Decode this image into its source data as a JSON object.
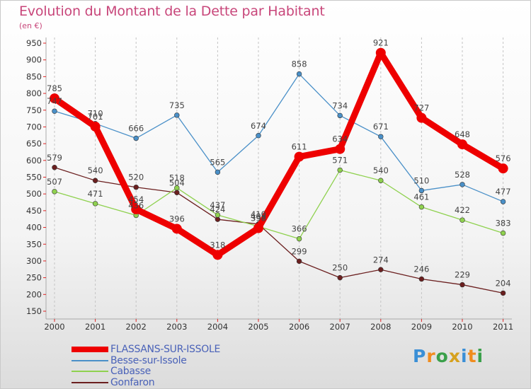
{
  "title": "Evolution du Montant de la Dette par Habitant",
  "subtitle": "(en €)",
  "brand": "Proxiti",
  "chart_data": {
    "type": "line",
    "x": [
      "2000",
      "2001",
      "2002",
      "2003",
      "2004",
      "2005",
      "2006",
      "2007",
      "2008",
      "2009",
      "2010",
      "2011"
    ],
    "yticks": [
      150,
      200,
      250,
      300,
      350,
      400,
      450,
      500,
      550,
      600,
      650,
      700,
      750,
      800,
      850,
      900,
      950
    ],
    "ylim": [
      150,
      950
    ],
    "grid": "vertical dashed",
    "legend_position": "bottom-left",
    "series": [
      {
        "name": "FLASSANS-SUR-ISSOLE",
        "color": "#ee0000",
        "values": [
          785,
          701,
          454,
          396,
          318,
          398,
          611,
          634,
          921,
          727,
          648,
          576
        ]
      },
      {
        "name": "Besse-sur-Issole",
        "color": "#4a90c8",
        "values": [
          747,
          710,
          666,
          735,
          565,
          674,
          858,
          734,
          671,
          510,
          528,
          477
        ]
      },
      {
        "name": "Cabasse",
        "color": "#8fd14f",
        "values": [
          507,
          471,
          436,
          518,
          437,
          403,
          366,
          571,
          540,
          461,
          422,
          383
        ]
      },
      {
        "name": "Gonfaron",
        "color": "#6b1f1f",
        "values": [
          579,
          540,
          520,
          504,
          424,
          410,
          299,
          250,
          274,
          246,
          229,
          204
        ]
      }
    ]
  }
}
